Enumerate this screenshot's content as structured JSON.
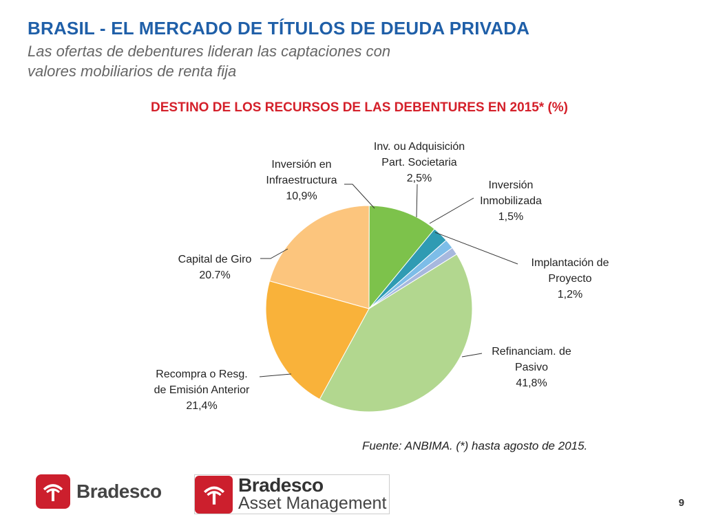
{
  "header": {
    "title": "BRASIL - EL MERCADO DE TÍTULOS DE DEUDA PRIVADA",
    "subtitle_line1": "Las ofertas de debentures lideran las captaciones con",
    "subtitle_line2": "valores mobiliarios de renta fija"
  },
  "chart_data": {
    "type": "pie",
    "title": "DESTINO DE LOS RECURSOS DE LAS DEBENTURES EN 2015* (%)",
    "slices": [
      {
        "label_lines": [
          "Refinanciam. de",
          "Pasivo",
          "41,8%"
        ],
        "value": 41.8,
        "color": "#b2d78f"
      },
      {
        "label_lines": [
          "Recompra o Resg.",
          "de Emisión Anterior",
          "21,4%"
        ],
        "value": 21.4,
        "color": "#f9b23a"
      },
      {
        "label_lines": [
          "Capital de Giro",
          "20.7%"
        ],
        "value": 20.7,
        "color": "#fcc57d"
      },
      {
        "label_lines": [
          "Inversión en",
          "Infraestructura",
          "10,9%"
        ],
        "value": 10.9,
        "color": "#7dc24b"
      },
      {
        "label_lines": [
          "Inv. ou Adquisición",
          "Part. Societaria",
          "2,5%"
        ],
        "value": 2.5,
        "color": "#2f9bb3"
      },
      {
        "label_lines": [
          "Inversión",
          "Inmobilizada",
          "1,5%"
        ],
        "value": 1.5,
        "color": "#7dbde8"
      },
      {
        "label_lines": [
          "Implantación de",
          "Proyecto",
          "1,2%"
        ],
        "value": 1.2,
        "color": "#a7b8de"
      }
    ]
  },
  "footer": {
    "source": "Fuente: ANBIMA. (*) hasta agosto de 2015.",
    "page_number": "9",
    "logo1_text": "Bradesco",
    "logo2_line1": "Bradesco",
    "logo2_line2": "Asset Management"
  }
}
